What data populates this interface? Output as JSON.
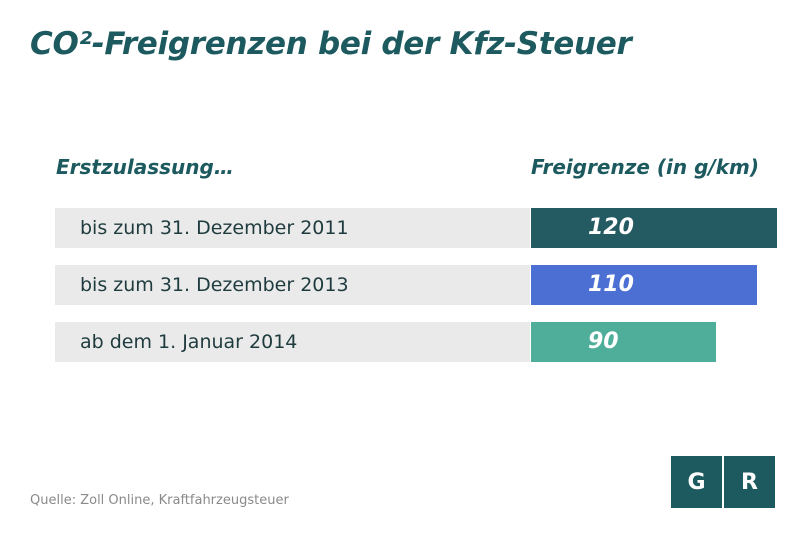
{
  "title": "CO²-Freigrenzen bei der Kfz-Steuer",
  "column_headers": {
    "left": "Erstzulassung…",
    "right": "Freigrenze (in g/km)"
  },
  "source": "Quelle: Zoll Online, Kraftfahrzeugsteuer",
  "logo": {
    "left": "G",
    "right": "R"
  },
  "colors": {
    "title": "#1d5a5f",
    "row_background": "#ebeaea",
    "series": [
      "#245b62",
      "#4b6fd2",
      "#4fae9a"
    ]
  },
  "chart_data": {
    "type": "bar",
    "orientation": "horizontal",
    "title": "CO²-Freigrenzen bei der Kfz-Steuer",
    "categories": [
      "bis zum 31. Dezember 2011",
      "bis zum 31. Dezember 2013",
      "ab dem 1. Januar 2014"
    ],
    "values": [
      120,
      110,
      90
    ],
    "value_labels": [
      "120",
      "110",
      "90"
    ],
    "xlim": [
      0,
      120
    ],
    "grid": false
  }
}
